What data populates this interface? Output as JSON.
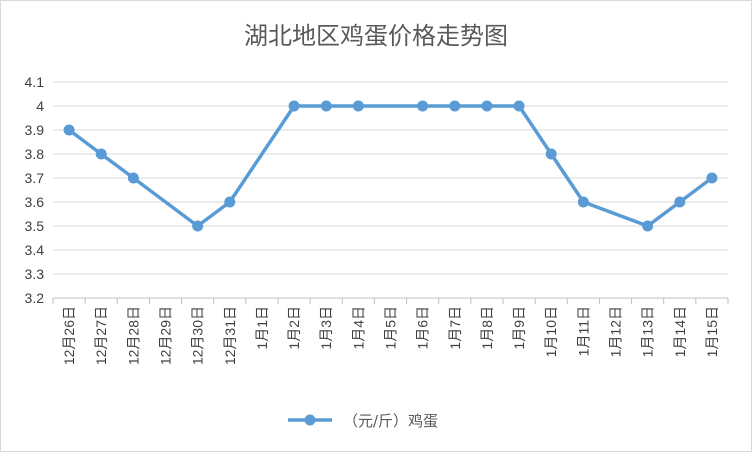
{
  "chart_data": {
    "type": "line",
    "title": "湖北地区鸡蛋价格走势图",
    "xlabel": "",
    "ylabel": "",
    "categories": [
      "12月26日",
      "12月27日",
      "12月28日",
      "12月29日",
      "12月30日",
      "12月31日",
      "1月1日",
      "1月2日",
      "1月3日",
      "1月4日",
      "1月5日",
      "1月6日",
      "1月7日",
      "1月8日",
      "1月9日",
      "1月10日",
      "1月11日",
      "1月12日",
      "1月13日",
      "1月14日",
      "1月15日"
    ],
    "series": [
      {
        "name": "（元/斤）鸡蛋",
        "color": "#5b9bd5",
        "values": [
          3.9,
          3.8,
          3.7,
          null,
          3.5,
          3.6,
          null,
          4.0,
          4.0,
          4.0,
          null,
          4.0,
          4.0,
          4.0,
          4.0,
          3.8,
          3.6,
          null,
          3.5,
          3.6,
          3.7
        ]
      }
    ],
    "ylim": [
      3.2,
      4.1
    ],
    "yticks": [
      "3.2",
      "3.3",
      "3.4",
      "3.5",
      "3.6",
      "3.7",
      "3.8",
      "3.9",
      "4",
      "4.1"
    ],
    "grid": true,
    "legend": "bottom"
  }
}
